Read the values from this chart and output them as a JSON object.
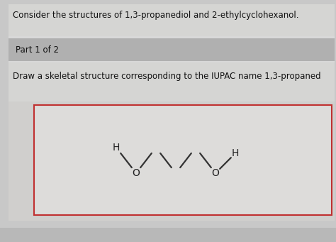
{
  "title_text": "Consider the structures of 1,3-propanediol and 2-ethylcyclohexanol.",
  "part_text": "Part 1 of 2",
  "draw_text": "Draw a skeletal structure corresponding to the IUPAC name 1,3-propaned",
  "outer_bg": "#b8b8b8",
  "inner_bg": "#d8d8d8",
  "content_bg": "#e8e7e5",
  "box_bg": "#e0dfdd",
  "part_bar_color": "#b0b0b0",
  "title_fontsize": 8.5,
  "part_fontsize": 8.5,
  "draw_fontsize": 8.5,
  "bond_color": "#333333",
  "label_color": "#222222",
  "box_border_color": "#c03030",
  "label_fontsize": 10
}
